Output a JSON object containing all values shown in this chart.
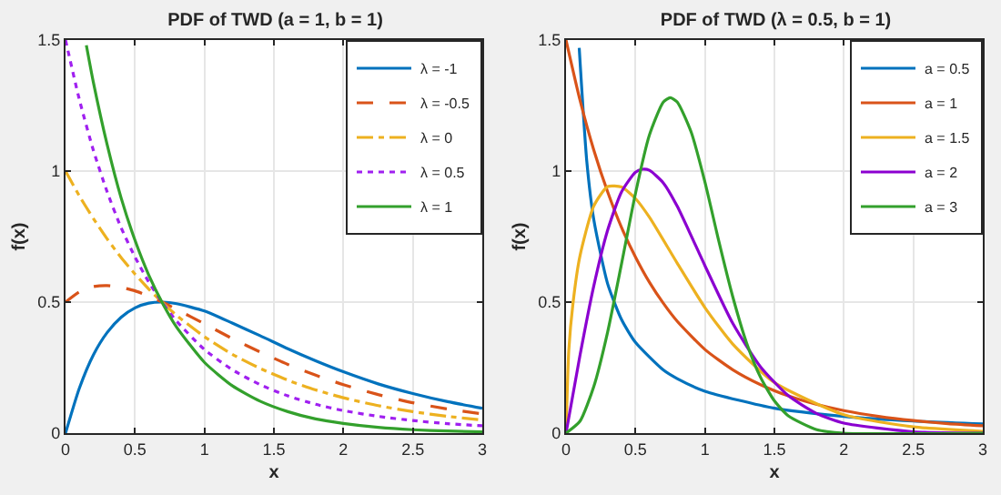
{
  "chart_data": [
    {
      "type": "line",
      "title": "PDF of TWD (a = 1, b = 1)",
      "xlabel": "x",
      "ylabel": "f(x)",
      "xlim": [
        0,
        3
      ],
      "xticks": [
        0,
        0.5,
        1,
        1.5,
        2,
        2.5,
        3
      ],
      "ylim": [
        0,
        1.5
      ],
      "yticks": [
        0,
        0.5,
        1,
        1.5
      ],
      "grid": true,
      "legend": "top right",
      "x": [
        0,
        0.1,
        0.2,
        0.3,
        0.4,
        0.5,
        0.6,
        0.7,
        0.8,
        1.0,
        1.2,
        1.4,
        1.6,
        1.8,
        2.0,
        2.25,
        2.5,
        2.75,
        3.0
      ],
      "series": [
        {
          "name": "λ = -1",
          "color": "#0072bd",
          "line_style": "solid",
          "values": [
            0,
            0.172,
            0.298,
            0.384,
            0.442,
            0.478,
            0.496,
            0.5,
            0.494,
            0.466,
            0.42,
            0.372,
            0.322,
            0.276,
            0.234,
            0.188,
            0.151,
            0.12,
            0.095
          ]
        },
        {
          "name": "λ = -0.5",
          "color": "#d95319",
          "line_style": "dashed",
          "values": [
            0.5,
            0.539,
            0.559,
            0.563,
            0.556,
            0.543,
            0.523,
            0.499,
            0.472,
            0.417,
            0.361,
            0.31,
            0.262,
            0.221,
            0.185,
            0.147,
            0.116,
            0.092,
            0.073
          ]
        },
        {
          "name": "λ = 0",
          "color": "#edb120",
          "line_style": "dashdot",
          "values": [
            1,
            0.905,
            0.819,
            0.741,
            0.67,
            0.607,
            0.549,
            0.497,
            0.449,
            0.368,
            0.301,
            0.247,
            0.202,
            0.165,
            0.135,
            0.105,
            0.082,
            0.064,
            0.05
          ]
        },
        {
          "name": "λ = 0.5",
          "color": "#a020f0",
          "line_style": "dotted",
          "values": [
            1.5,
            1.272,
            1.08,
            0.92,
            0.784,
            0.672,
            0.576,
            0.496,
            0.427,
            0.319,
            0.242,
            0.185,
            0.142,
            0.11,
            0.086,
            0.064,
            0.048,
            0.036,
            0.028
          ]
        },
        {
          "name": "λ = 1",
          "color": "#33a02c",
          "line_style": "solid",
          "x": [
            0.15,
            0.2,
            0.3,
            0.4,
            0.5,
            0.6,
            0.7,
            0.8,
            1.0,
            1.2,
            1.4,
            1.6,
            1.8,
            2.0,
            2.25,
            2.5,
            2.75,
            3.0
          ],
          "values": [
            1.48,
            1.34,
            1.1,
            0.898,
            0.736,
            0.602,
            0.494,
            0.404,
            0.27,
            0.181,
            0.122,
            0.082,
            0.054,
            0.037,
            0.022,
            0.013,
            0.008,
            0.005
          ]
        }
      ]
    },
    {
      "type": "line",
      "title": "PDF of TWD (λ = 0.5, b = 1)",
      "xlabel": "x",
      "ylabel": "f(x)",
      "xlim": [
        0,
        3
      ],
      "xticks": [
        0,
        0.5,
        1,
        1.5,
        2,
        2.5,
        3
      ],
      "ylim": [
        0,
        1.5
      ],
      "yticks": [
        0,
        0.5,
        1,
        1.5
      ],
      "grid": true,
      "legend": "top right",
      "line_style": "solid",
      "series": [
        {
          "name": "a = 0.5",
          "color": "#0072bd",
          "x": [
            0.095,
            0.15,
            0.2,
            0.3,
            0.4,
            0.5,
            0.7,
            0.8,
            1.0,
            1.5,
            2.0,
            2.5,
            3.0
          ],
          "values": [
            1.47,
            1.034,
            0.814,
            0.569,
            0.433,
            0.346,
            0.241,
            0.208,
            0.16,
            0.095,
            0.064,
            0.046,
            0.035
          ]
        },
        {
          "name": "a = 1",
          "color": "#d95319",
          "x": [
            0,
            0.1,
            0.2,
            0.3,
            0.4,
            0.5,
            0.6,
            0.7,
            0.8,
            1.0,
            1.2,
            1.4,
            1.6,
            1.8,
            2.0,
            2.25,
            2.5,
            2.75,
            3.0
          ],
          "values": [
            1.5,
            1.272,
            1.08,
            0.92,
            0.784,
            0.672,
            0.576,
            0.496,
            0.427,
            0.319,
            0.242,
            0.185,
            0.142,
            0.11,
            0.086,
            0.064,
            0.048,
            0.036,
            0.028
          ]
        },
        {
          "name": "a = 1.5",
          "color": "#edb120",
          "x": [
            0,
            0.02,
            0.05,
            0.1,
            0.2,
            0.3,
            0.4,
            0.5,
            0.6,
            0.8,
            1.0,
            1.2,
            1.5,
            2.0,
            2.5,
            3.0
          ],
          "values": [
            0,
            0.316,
            0.495,
            0.675,
            0.867,
            0.941,
            0.939,
            0.895,
            0.824,
            0.649,
            0.479,
            0.34,
            0.193,
            0.07,
            0.024,
            0.007
          ]
        },
        {
          "name": "a = 2",
          "color": "#8b00d0",
          "x": [
            0,
            0.1,
            0.2,
            0.3,
            0.4,
            0.5,
            0.55,
            0.6,
            0.7,
            0.8,
            1.0,
            1.2,
            1.4,
            1.6,
            1.8,
            2.0,
            2.5,
            3.0
          ],
          "values": [
            0,
            0.295,
            0.562,
            0.775,
            0.921,
            0.996,
            1.007,
            1.003,
            0.955,
            0.866,
            0.639,
            0.419,
            0.253,
            0.143,
            0.076,
            0.038,
            0.005,
            0
          ]
        },
        {
          "name": "a = 3",
          "color": "#33a02c",
          "x": [
            0,
            0.1,
            0.2,
            0.3,
            0.4,
            0.5,
            0.6,
            0.7,
            0.75,
            0.8,
            0.9,
            1.0,
            1.1,
            1.2,
            1.3,
            1.4,
            1.5,
            1.6,
            1.8,
            2.0,
            3.0
          ],
          "values": [
            0,
            0.045,
            0.178,
            0.387,
            0.647,
            0.915,
            1.137,
            1.263,
            1.28,
            1.264,
            1.15,
            0.958,
            0.732,
            0.521,
            0.344,
            0.213,
            0.123,
            0.066,
            0.014,
            0,
            0
          ]
        }
      ]
    }
  ]
}
